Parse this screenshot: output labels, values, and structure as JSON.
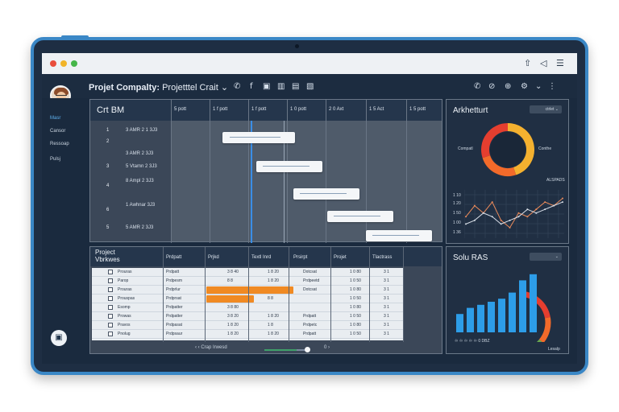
{
  "browser": {
    "chrome_dots": [
      "#e94e3c",
      "#f1b429",
      "#45b649"
    ]
  },
  "header": {
    "title_bold": "Projet Compalty:",
    "title_rest": "Projetttel Crait",
    "caret": "⌄",
    "icons": [
      "phone-icon",
      "facebook-icon",
      "document-icon",
      "chart-icon",
      "file-icon",
      "image-icon"
    ],
    "right_icons": [
      "phone-icon",
      "link-icon",
      "attachment-icon",
      "settings-icon",
      "chevron-down-icon",
      "more-icon"
    ]
  },
  "sidebar": {
    "items": [
      {
        "label": "Masr",
        "active": true
      },
      {
        "label": "Cansor",
        "active": false
      },
      {
        "label": "Ressoap",
        "active": false
      },
      {
        "label": "Pulsj",
        "active": false
      }
    ]
  },
  "gantt": {
    "title": "Crt BM",
    "columns": [
      "5 pott",
      "1 f pott",
      "1 f pott",
      "1 0 pott",
      "2 0 Axt",
      "1 5 Act",
      "1 5 pott"
    ],
    "rows": [
      {
        "num": "1",
        "task": "3 AMR 2 1 3J3"
      },
      {
        "num": "2",
        "task": "3 AMR 2 3J3"
      },
      {
        "num": "3",
        "task": "5 Vtamn 2 3J3"
      },
      {
        "num": "4",
        "task": "8 Ampl 2 3J3"
      },
      {
        "num": "6",
        "task": "1 Awhnar 3J3"
      },
      {
        "num": "5",
        "task": "5 AMR 2 3J3"
      }
    ]
  },
  "table": {
    "title_line1": "Project",
    "title_line2": "Vbrkwes",
    "columns": [
      "Prdpatt",
      "Prjkd",
      "Textl Inrd",
      "Prsirpt",
      "Projet",
      "Tlactrass"
    ],
    "rows": [
      {
        "name": "Prouras",
        "c1": "Prdpatt",
        "c2": "3 8 40",
        "c3": "1 8 20",
        "c4": "Dotcsat",
        "c5": "1 0 80",
        "c6": "3 1",
        "progress": 0
      },
      {
        "name": "Parop",
        "c1": "Prdpesm",
        "c2": "8 8",
        "c3": "1 8 20",
        "c4": "Prdpeetd",
        "c5": "1 0 50",
        "c6": "3 1",
        "progress": 0
      },
      {
        "name": "Prouras",
        "c1": "Prdprlur",
        "c2": "",
        "c3": "",
        "c4": "Dotcsat",
        "c5": "1 0 80",
        "c6": "3 1",
        "progress": 0.55
      },
      {
        "name": "Prouspas",
        "c1": "Prdprsat",
        "c2": "",
        "c3": "8 8",
        "c4": "",
        "c5": "1 0 50",
        "c6": "3 1",
        "progress": 0.3
      },
      {
        "name": "Esomp",
        "c1": "Prdpatter",
        "c2": "3 8 80",
        "c3": "",
        "c4": "",
        "c5": "1 0 80",
        "c6": "3 1",
        "progress": 0
      },
      {
        "name": "Prowas",
        "c1": "Prdpatter",
        "c2": "3 8 20",
        "c3": "1 8 20",
        "c4": "Prdpatt",
        "c5": "1 0 50",
        "c6": "3 1",
        "progress": 0
      },
      {
        "name": "Pravos",
        "c1": "Prdpasat",
        "c2": "1 8 20",
        "c3": "1 8",
        "c4": "Prdpetc",
        "c5": "1 0 80",
        "c6": "3 1",
        "progress": 0
      },
      {
        "name": "Pnolug",
        "c1": "Prdpsaur",
        "c2": "1 8 20",
        "c3": "1 8 20",
        "c4": "Prdpatt",
        "c5": "1 0 50",
        "c6": "3 1",
        "progress": 0
      }
    ],
    "footer": "‹ ‹  Crap   Irwesd",
    "footer_right": "0 ›"
  },
  "architecture": {
    "title": "Arkhetturt",
    "dropdown": "ctrlet",
    "left_label": "Compatl",
    "right_label": "Conthe",
    "bottom_label": "ALSPADS",
    "y_ticks": [
      "1 10",
      "1 20",
      "1 50",
      "1 00",
      "1 36"
    ]
  },
  "solu": {
    "title": "Solu RAS",
    "dropdown": "",
    "legend": "♾ ♾ ♾ ♾ ♾ 0 DBZ",
    "corner": "Lesalp"
  },
  "chart_data": [
    {
      "type": "pie",
      "values": [
        45,
        25,
        30
      ],
      "colors": [
        "#f4b12f",
        "#f26a2a",
        "#e53e2f"
      ]
    },
    {
      "type": "line",
      "series": [
        {
          "values": [
            5,
            8,
            6,
            9,
            4,
            2,
            6,
            5,
            7,
            9,
            8,
            10
          ]
        },
        {
          "values": [
            3,
            4,
            6,
            5,
            3,
            4,
            5,
            7,
            6,
            7,
            8,
            9
          ]
        }
      ],
      "colors": [
        "#e98a5a",
        "#d7dde6"
      ]
    },
    {
      "type": "bar",
      "values": [
        3,
        4,
        4.5,
        5,
        5.5,
        6.5,
        8.5,
        9.5
      ],
      "color": "#2d9de8"
    }
  ]
}
